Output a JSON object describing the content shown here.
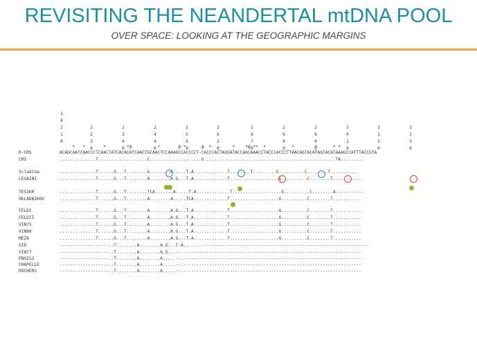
{
  "header": {
    "title": "REVISITING THE NEANDERTAL mtDNA POOL",
    "subtitle": "OVER SPACE: LOOKING AT THE GEOGRAPHIC MARGINS"
  },
  "alignment": {
    "first_position": "16210",
    "positions": [
      "2230",
      "2340",
      "2440",
      "2560",
      "2620",
      "2670",
      "2680",
      "2900",
      "3010",
      "3120",
      "3230"
    ],
    "marks_line": "     *   *       *        *@          *       @ *      @  *        *    *@ **  *          *        *      * *",
    "reference": [
      {
        "label": "R-CRS",
        "seq": "ACAGCAATCAACCCTCAACTATCACACATCAACTGCAACTCCAAAGCCACCCCT-CACCCACTAGGATACCAACAAACCTACCCACCCTTAACAGTACATAGTACATAAAGCCATTTACCGTA"
      },
      {
        "label": "CRS",
        "seq": "..............T...................C....................G...................................................TA........."
      }
    ],
    "group_1": [
      {
        "label": "Scladina",
        "seq": "..............T......G...T........G........A.....T.A.............T........T.........G..........C........T..........."
      },
      {
        "label": "LESÀINI",
        "seq": "..............T......G...T........A........A.G...T.A.............T...................G..........C........T..........."
      }
    ],
    "group_2": [
      {
        "label": "TESIKR",
        "seq": "..............T......G...T........TCA.......A.....T.A.............T...................G..........C........A-----------"
      },
      {
        "label": "OKLADNIKOV",
        "seq": "..............T......G...T........A........A.....TCA.............T...................G..........C........T..........."
      }
    ],
    "group_3": [
      {
        "label": "FELDI",
        "seq": "..............T......G...T........A........A.G...T.A.............T...................G..........C........T..........."
      },
      {
        "label": "FELDII",
        "seq": "..............T......G...T........A........A.G...T.A.............T...................G..........C........T..........."
      },
      {
        "label": "VIN75",
        "seq": "..............T......G...T........A........A.G...T.A.............T...................G..........C........T..........."
      },
      {
        "label": "VIN80",
        "seq": "..............T......G...T........A........A.G...T.A.............T...................G..........C........T..........."
      },
      {
        "label": "MEZ8",
        "seq": "..............T......G...T........A........A.G...T.A.............T...................G..........C........T..........."
      },
      {
        "label": "SID",
        "seq": "-------------------..T........A........A.G...T.A.......-----------------------------------------------------------------"
      },
      {
        "label": "VIN77",
        "seq": "-------------------..T........A........A.G...--.---------------------------------------------------------------------"
      },
      {
        "label": "ENGIS2",
        "seq": "-------------------..T........A........A.....--.---------------------------------------------------------------------"
      },
      {
        "label": "CHAPELLE",
        "seq": "-------------------..T........A........A.....--.---------------------------------------------------------------------"
      },
      {
        "label": "ROCHERS",
        "seq": "-------------------..T........A........A.....--.---------------------------------------------------------------------"
      }
    ]
  },
  "annotations": {
    "blue_ring_color": "#2b88b8",
    "red_ring_color": "#d9452a",
    "green_dot_color": "#88b82a",
    "title_color": "#1a8fa3",
    "rule_color": "#f0a33c"
  }
}
